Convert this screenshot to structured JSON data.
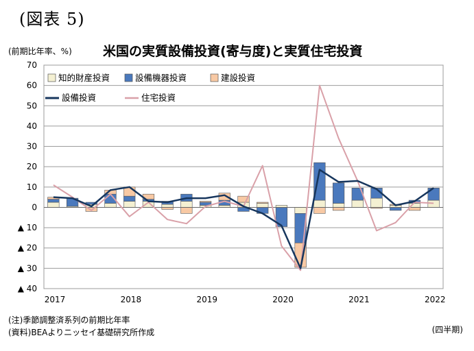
{
  "figure_label": "(図表 5)",
  "unit_label": "(前期比年率、%)",
  "chart_title": "米国の実質設備投資(寄与度)と実質住宅投資",
  "note_1": "(注)季節調整済系列の前期比年率",
  "note_2": "(資料)BEAよりニッセイ基礎研究所作成",
  "period_label": "(四半期)",
  "colors": {
    "ip": "#f4f0d2",
    "equipment": "#4a79bd",
    "structures": "#f8c9a4",
    "total": "#17365d",
    "residential": "#d9a0a8",
    "grid": "#9b9b9b"
  },
  "chart_data": {
    "type": "bar",
    "subtype": "stacked bar with lines",
    "ylim": [
      -40,
      70
    ],
    "yticks": [
      {
        "value": 70,
        "label": "70"
      },
      {
        "value": 60,
        "label": "60"
      },
      {
        "value": 50,
        "label": "50"
      },
      {
        "value": 40,
        "label": "40"
      },
      {
        "value": 30,
        "label": "30"
      },
      {
        "value": 20,
        "label": "20"
      },
      {
        "value": 10,
        "label": "10"
      },
      {
        "value": 0,
        "label": "0"
      },
      {
        "value": -10,
        "label": "▲ 10"
      },
      {
        "value": -20,
        "label": "▲ 20"
      },
      {
        "value": -30,
        "label": "▲ 30"
      },
      {
        "value": -40,
        "label": "▲ 40"
      }
    ],
    "xticks": [
      {
        "index": 0,
        "label": "2017"
      },
      {
        "index": 4,
        "label": "2018"
      },
      {
        "index": 8,
        "label": "2019"
      },
      {
        "index": 12,
        "label": "2020"
      },
      {
        "index": 16,
        "label": "2021"
      },
      {
        "index": 20,
        "label": "2022"
      }
    ],
    "n_quarters": 21,
    "grid": true,
    "legend_position": "top-left",
    "bar_series": [
      {
        "name": "知的財産投資",
        "color_key": "ip",
        "values": [
          2.5,
          0.5,
          1.5,
          2.0,
          3.0,
          3.0,
          1.5,
          3.0,
          1.0,
          1.0,
          2.5,
          2.0,
          1.0,
          -3.0,
          3.5,
          2.0,
          3.5,
          4.5,
          1.0,
          2.0,
          3.5
        ]
      },
      {
        "name": "設備機器投資",
        "color_key": "equipment",
        "values": [
          1.5,
          4.0,
          1.0,
          4.5,
          2.5,
          1.0,
          1.5,
          3.5,
          1.5,
          2.5,
          -2.0,
          -3.0,
          -9.5,
          -14.5,
          18.5,
          10.0,
          6.0,
          5.0,
          -1.5,
          1.5,
          6.0
        ]
      },
      {
        "name": "建設投資",
        "color_key": "structures",
        "values": [
          1.0,
          0.0,
          -2.0,
          2.0,
          4.5,
          2.5,
          -1.0,
          -3.0,
          0.5,
          3.5,
          3.0,
          0.5,
          0.0,
          -12.0,
          -3.0,
          -1.5,
          0.0,
          -0.5,
          0.5,
          -1.5,
          0.0
        ]
      }
    ],
    "line_series": [
      {
        "name": "設備投資",
        "color_key": "total",
        "width": 2.5,
        "values": [
          5,
          4.5,
          0.5,
          8.5,
          10,
          3,
          2.5,
          4.5,
          4.5,
          6,
          0.5,
          -3,
          -9,
          -30,
          18.5,
          12.5,
          13,
          9,
          1,
          3,
          9.5
        ]
      },
      {
        "name": "住宅投資",
        "color_key": "residential",
        "width": 2,
        "values": [
          11,
          5,
          -1.5,
          6.5,
          -4.5,
          2.5,
          -6,
          -8,
          0.5,
          3,
          0.5,
          20.5,
          -19,
          -31,
          60,
          34,
          13,
          -11.5,
          -7.5,
          2.5,
          2
        ]
      }
    ]
  }
}
